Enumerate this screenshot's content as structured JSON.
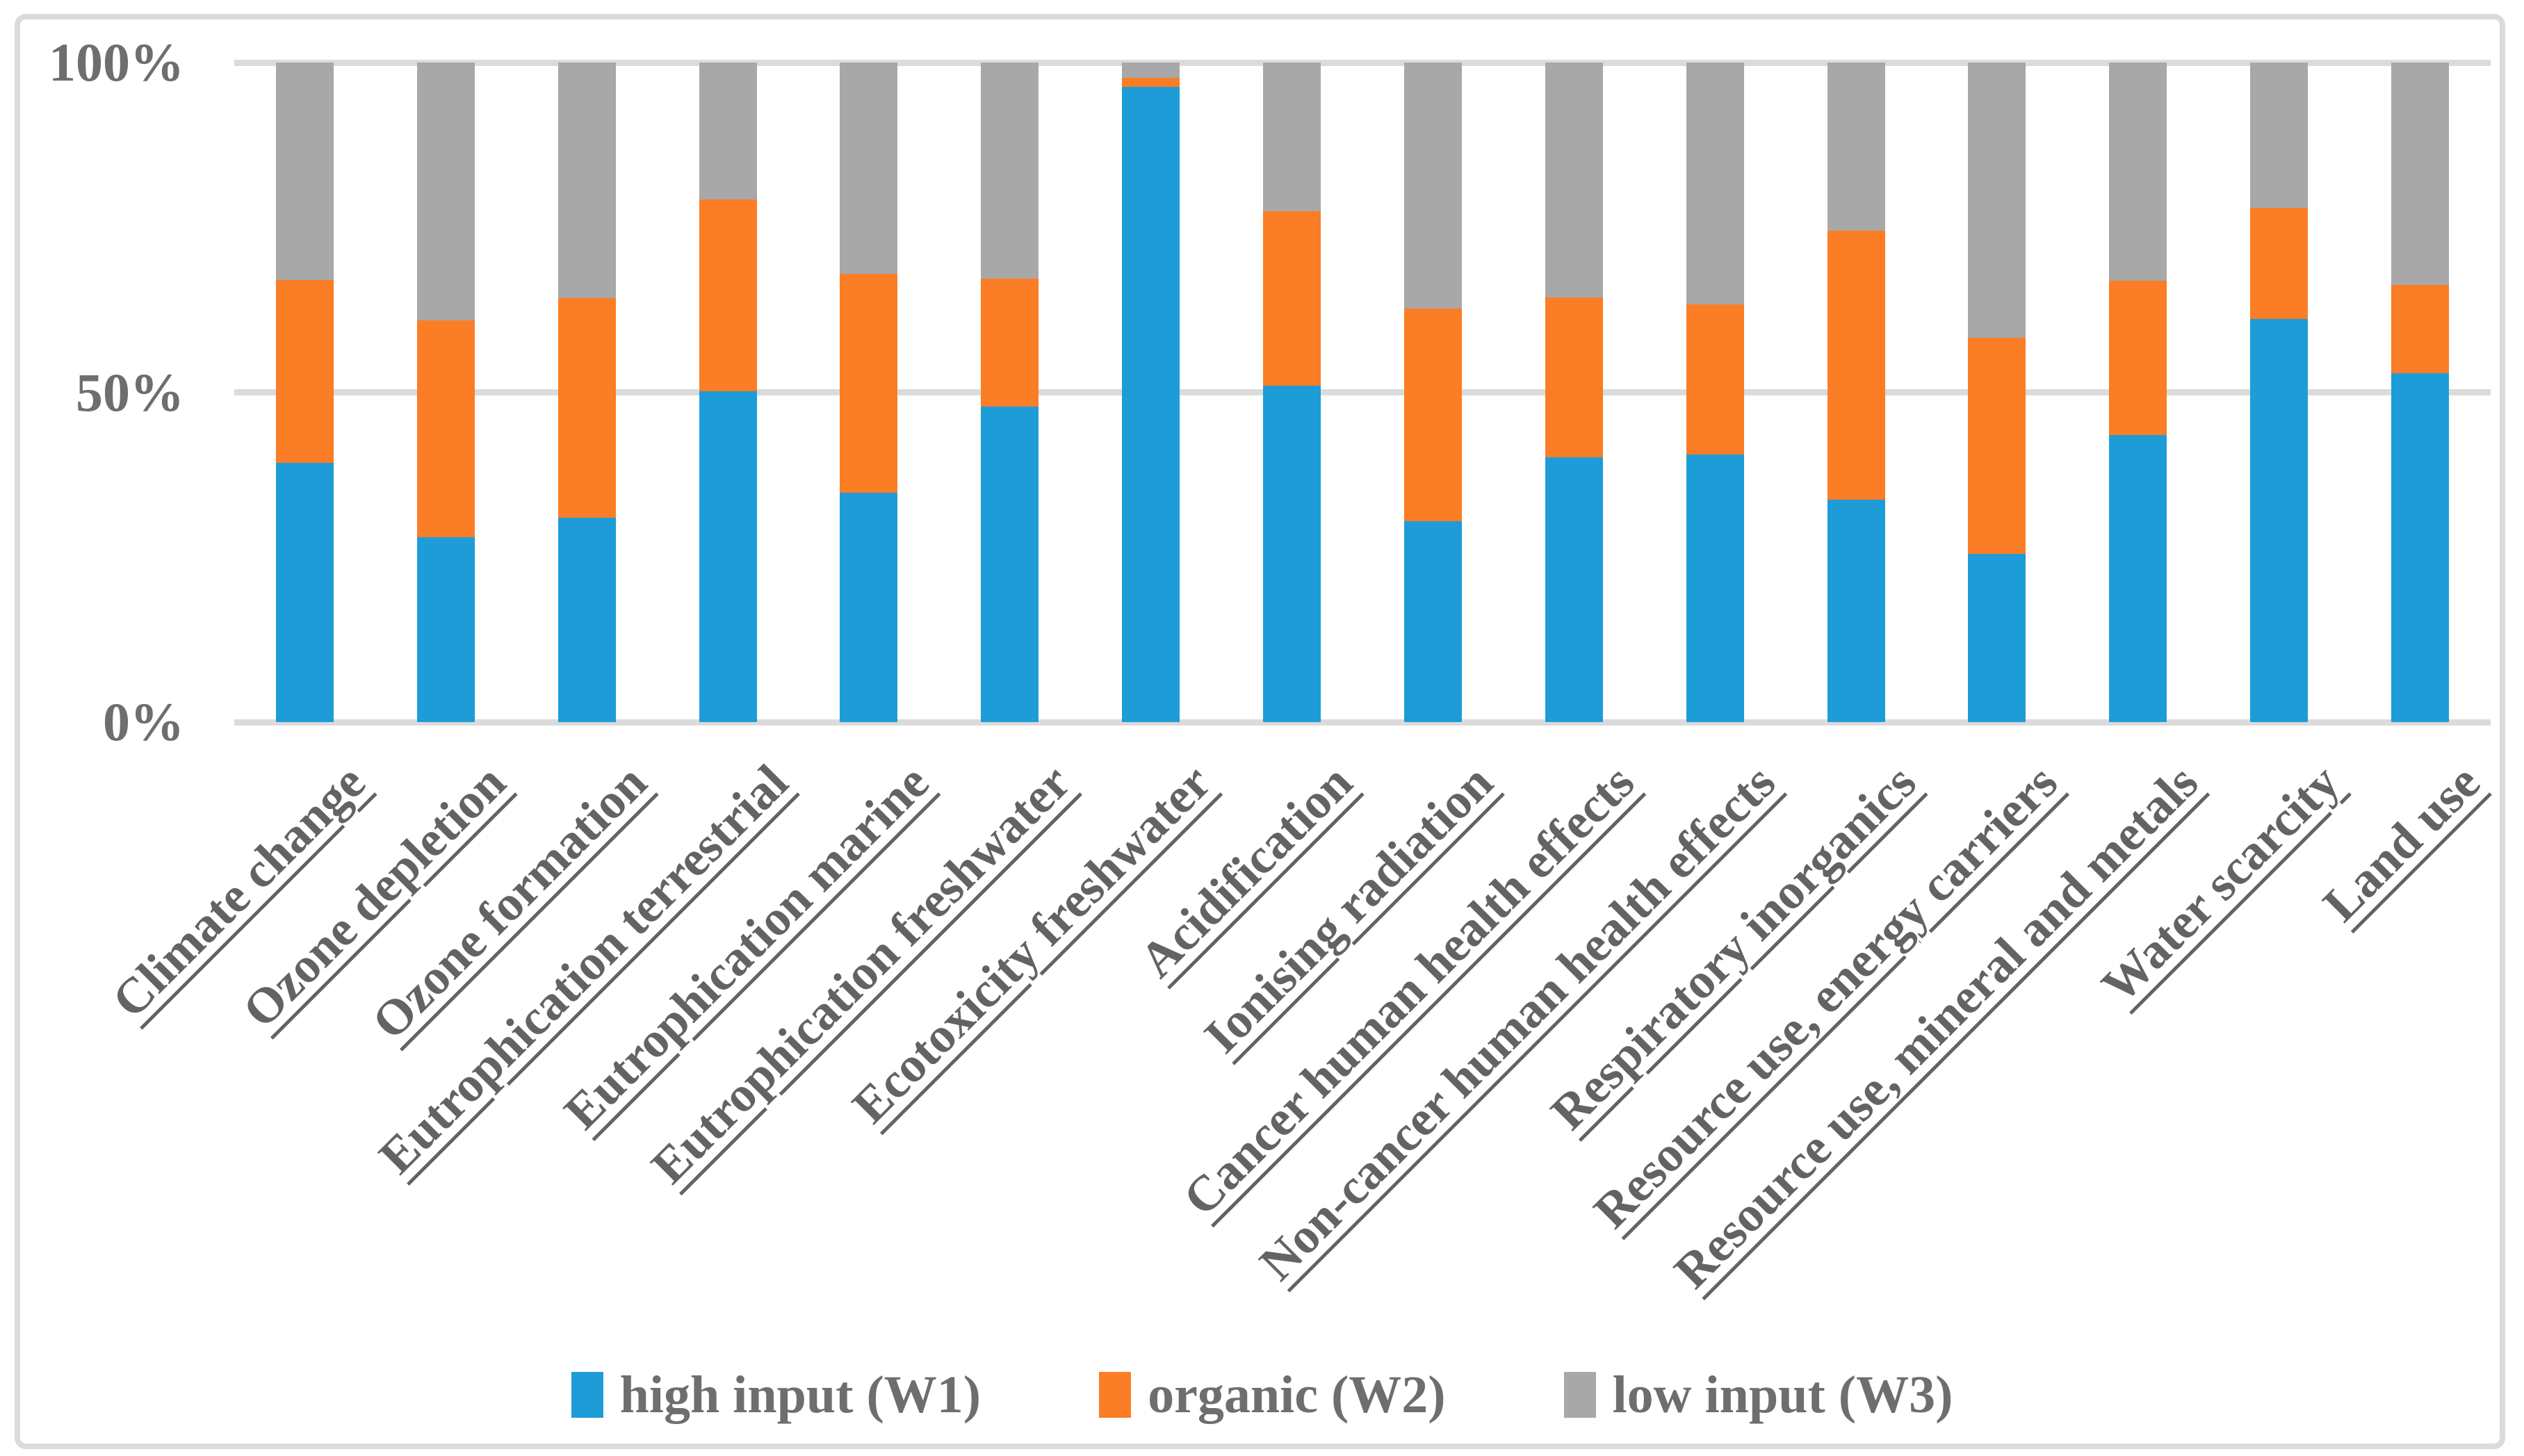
{
  "chart_data": {
    "type": "bar",
    "stacked": true,
    "normalized": "percent",
    "orientation": "vertical",
    "grid": true,
    "legend_position": "bottom",
    "y_axis": {
      "ticks": [
        {
          "label": "0%",
          "value": 0
        },
        {
          "label": "50%",
          "value": 50
        },
        {
          "label": "100%",
          "value": 100
        }
      ],
      "ylim": [
        0,
        100
      ]
    },
    "categories": [
      "Climate change",
      "Ozone depletion",
      "Ozone formation",
      "Eutrophication terrestrial",
      "Eutrophication marine",
      "Eutrophication freshwater",
      "Ecotoxicity freshwater",
      "Acidification",
      "Ionising radiation",
      "Cancer human health effects",
      "Non-cancer human health effects",
      "Respiratory inorganics",
      "Resource use, energy carriers",
      "Resource use, mineral and metals",
      "Water scarcity",
      "Land use"
    ],
    "series": [
      {
        "name": "high input (W1)",
        "color": "#1E9CD8",
        "values": [
          39.3,
          28.0,
          31.0,
          50.2,
          34.8,
          47.8,
          96.3,
          51.0,
          30.4,
          40.2,
          40.6,
          33.7,
          25.5,
          43.5,
          61.1,
          52.9
        ]
      },
      {
        "name": "organic (W2)",
        "color": "#FB7D25",
        "values": [
          27.7,
          32.9,
          33.3,
          29.0,
          33.2,
          19.4,
          1.4,
          26.4,
          32.3,
          24.2,
          22.7,
          40.8,
          32.8,
          23.4,
          16.9,
          13.4
        ]
      },
      {
        "name": "low input (W3)",
        "color": "#A8A8A8",
        "values": [
          33.0,
          39.1,
          35.7,
          20.8,
          32.0,
          32.8,
          2.3,
          22.6,
          37.3,
          35.6,
          36.7,
          25.5,
          41.7,
          33.1,
          22.0,
          33.7
        ]
      }
    ]
  },
  "style": {
    "gridline_color": "#DBDBDB",
    "frame_border_color": "#DBDBDB",
    "axis_text_color": "#6E6E6E",
    "category_text_color": "#636363",
    "background": "#FFFFFF"
  }
}
